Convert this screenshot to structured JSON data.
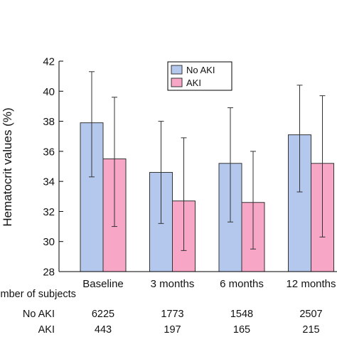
{
  "chart_data": {
    "type": "bar",
    "ylabel": "Hematocrit values (%)",
    "ylim": [
      28,
      42
    ],
    "yticks": [
      28,
      30,
      32,
      34,
      36,
      38,
      40,
      42
    ],
    "grid": false,
    "legend_position": "top-center",
    "categories": [
      "Baseline",
      "3 months",
      "6 months",
      "12 months"
    ],
    "series": [
      {
        "name": "No AKI",
        "color": "#b4c8ee",
        "values": [
          37.9,
          34.6,
          35.2,
          37.1
        ],
        "err_low": [
          34.3,
          31.2,
          31.3,
          33.3
        ],
        "err_high": [
          41.3,
          38.0,
          38.9,
          40.4
        ]
      },
      {
        "name": "AKI",
        "color": "#f7a6c6",
        "values": [
          35.5,
          32.7,
          32.6,
          35.2
        ],
        "err_low": [
          31.0,
          29.4,
          29.5,
          30.3
        ],
        "err_high": [
          39.6,
          36.9,
          36.0,
          39.7
        ]
      }
    ],
    "subjects_table": {
      "title": "Number of subjects",
      "rows": [
        {
          "label": "No AKI",
          "values": [
            "6225",
            "1773",
            "1548",
            "2507"
          ]
        },
        {
          "label": "AKI",
          "values": [
            "443",
            "197",
            "165",
            "215"
          ]
        }
      ]
    }
  }
}
